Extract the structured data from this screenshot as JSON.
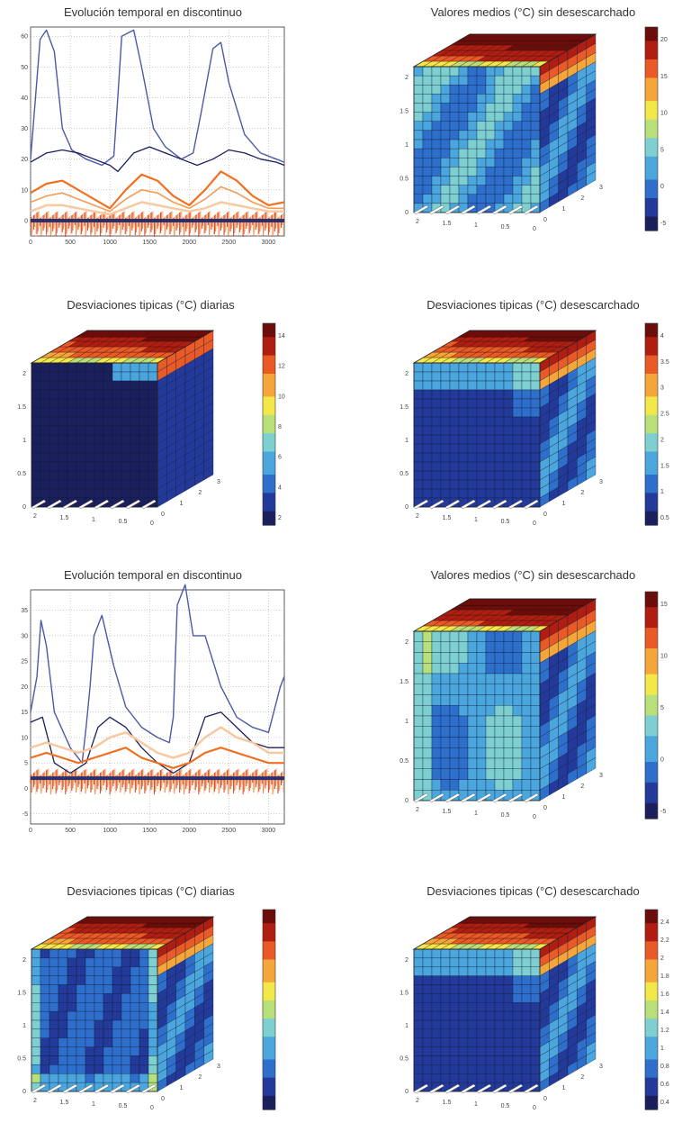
{
  "colors": {
    "line_dark": "#1a1f5e",
    "line_blue": "#4a5aa8",
    "orange_strong": "#f07020",
    "orange_mid": "#f39b55",
    "orange_light": "#f8c8a0",
    "red_dark": "#d03010",
    "navy_band": "#2a2f6e",
    "grid": "#9a9a9a",
    "jet": [
      "#1b1f5c",
      "#233a9a",
      "#2f6fcc",
      "#4aa6dd",
      "#7ed0d0",
      "#b8e07a",
      "#f2e84a",
      "#f5a63a",
      "#ea5a26",
      "#b01e12",
      "#6b0d0a"
    ]
  },
  "chart_data": [
    {
      "id": "line1",
      "type": "line",
      "title": "Evolución temporal en discontinuo",
      "xticks": [
        "0",
        "500",
        "1000",
        "1500",
        "2000",
        "2500",
        "3000"
      ],
      "yticks": [
        "0",
        "10",
        "20",
        "30",
        "40",
        "50",
        "60"
      ],
      "xlim": [
        0,
        3200
      ],
      "ylim": [
        -5,
        63
      ],
      "grid": true,
      "series": [
        {
          "role": "blue_peaks",
          "x": [
            0,
            120,
            200,
            300,
            400,
            520,
            700,
            900,
            1050,
            1100,
            1150,
            1300,
            1400,
            1550,
            1700,
            1900,
            2050,
            2150,
            2300,
            2400,
            2500,
            2700,
            2900,
            3100,
            3200
          ],
          "y": [
            20,
            59,
            62,
            55,
            30,
            23,
            20,
            18,
            21,
            40,
            60,
            62,
            50,
            30,
            24,
            20,
            22,
            35,
            56,
            58,
            45,
            28,
            22,
            20,
            19
          ]
        },
        {
          "role": "dark_line",
          "x": [
            0,
            200,
            400,
            600,
            800,
            1000,
            1100,
            1300,
            1500,
            1700,
            1900,
            2100,
            2300,
            2500,
            2700,
            2900,
            3100,
            3200
          ],
          "y": [
            19,
            22,
            23,
            22,
            20,
            18,
            16,
            22,
            24,
            22,
            20,
            18,
            20,
            23,
            22,
            20,
            19,
            18
          ]
        },
        {
          "role": "orange_strong",
          "x": [
            0,
            200,
            400,
            600,
            800,
            1000,
            1200,
            1400,
            1600,
            1800,
            2000,
            2200,
            2400,
            2600,
            2800,
            3000,
            3200
          ],
          "y": [
            9,
            12,
            13,
            10,
            7,
            4,
            10,
            15,
            13,
            8,
            5,
            10,
            16,
            13,
            8,
            5,
            6
          ]
        },
        {
          "role": "orange_mid",
          "x": [
            0,
            200,
            400,
            600,
            800,
            1000,
            1200,
            1400,
            1600,
            1800,
            2000,
            2200,
            2400,
            2600,
            2800,
            3000,
            3200
          ],
          "y": [
            6,
            8,
            9,
            7,
            5,
            3,
            7,
            10,
            9,
            6,
            4,
            7,
            11,
            9,
            6,
            4,
            4
          ]
        },
        {
          "role": "orange_light",
          "x": [
            0,
            200,
            400,
            600,
            800,
            1000,
            1200,
            1400,
            1600,
            1800,
            2000,
            2200,
            2400,
            2600,
            2800,
            3000,
            3200
          ],
          "y": [
            3,
            5,
            5,
            4,
            3,
            2,
            4,
            6,
            5,
            4,
            3,
            4,
            6,
            5,
            4,
            3,
            3
          ]
        }
      ],
      "band_level": 0
    },
    {
      "id": "cube1",
      "type": "heatmap",
      "title": "Valores medios (°C) sin desescarchado",
      "colorbar_ticks": [
        "20",
        "15",
        "10",
        "5",
        "0",
        "-5"
      ],
      "zticks": [
        "2",
        "1.5",
        "1",
        "0.5",
        "0"
      ],
      "xticks": [
        "2",
        "1.5",
        "1",
        "0.5",
        "0"
      ],
      "yticks": [
        "0",
        "1",
        "2",
        "3"
      ],
      "hot_edge": "top-back",
      "hot_side": "right"
    },
    {
      "id": "cube2",
      "type": "heatmap",
      "title": "Desviaciones tipicas (°C) diarias",
      "colorbar_ticks": [
        "14",
        "12",
        "10",
        "8",
        "6",
        "4",
        "2"
      ],
      "zticks": [
        "2",
        "1.5",
        "1",
        "0.5",
        "0"
      ],
      "xticks": [
        "2",
        "1.5",
        "1",
        "0.5",
        "0"
      ],
      "yticks": [
        "0",
        "1",
        "2",
        "3"
      ],
      "hot_edge": "top-back",
      "hot_side": "right"
    },
    {
      "id": "cube3",
      "type": "heatmap",
      "title": "Desviaciones tipicas (°C) desescarchado",
      "colorbar_ticks": [
        "4",
        "3.5",
        "3",
        "2.5",
        "2",
        "1.5",
        "1",
        "0.5"
      ],
      "zticks": [
        "2",
        "1.5",
        "1",
        "0.5",
        "0"
      ],
      "xticks": [
        "2",
        "1.5",
        "1",
        "0.5",
        "0"
      ],
      "yticks": [
        "0",
        "1",
        "2",
        "3"
      ],
      "hot_edge": "top-back",
      "hot_side": "right"
    },
    {
      "id": "line2",
      "type": "line",
      "title": "Evolución temporal en discontinuo",
      "xticks": [
        "0",
        "500",
        "1000",
        "1500",
        "2000",
        "2500",
        "3000"
      ],
      "yticks": [
        "-5",
        "0",
        "5",
        "10",
        "15",
        "20",
        "25",
        "30",
        "35"
      ],
      "xlim": [
        0,
        3200
      ],
      "ylim": [
        -7,
        39
      ],
      "grid": true,
      "series": [
        {
          "role": "blue_peaks",
          "x": [
            0,
            80,
            130,
            200,
            300,
            500,
            650,
            700,
            750,
            800,
            900,
            1050,
            1200,
            1400,
            1600,
            1750,
            1800,
            1850,
            1950,
            2050,
            2200,
            2400,
            2600,
            2800,
            3000,
            3150,
            3200
          ],
          "y": [
            15,
            22,
            33,
            28,
            15,
            8,
            5,
            12,
            20,
            30,
            34,
            24,
            16,
            12,
            10,
            9,
            14,
            36,
            40,
            30,
            30,
            20,
            14,
            12,
            11,
            20,
            22
          ]
        },
        {
          "role": "dark_line",
          "x": [
            0,
            150,
            300,
            500,
            700,
            850,
            1000,
            1200,
            1400,
            1600,
            1800,
            2000,
            2200,
            2400,
            2600,
            2800,
            3000,
            3200
          ],
          "y": [
            13,
            14,
            5,
            3,
            5,
            12,
            14,
            12,
            8,
            5,
            3,
            5,
            14,
            15,
            12,
            9,
            8,
            8
          ]
        },
        {
          "role": "orange_strong",
          "x": [
            0,
            200,
            400,
            600,
            800,
            1000,
            1200,
            1400,
            1600,
            1800,
            2000,
            2200,
            2400,
            2600,
            2800,
            3000,
            3200
          ],
          "y": [
            6,
            7,
            6,
            5,
            6,
            7,
            8,
            6,
            5,
            4,
            5,
            7,
            8,
            7,
            6,
            5,
            5
          ]
        },
        {
          "role": "orange_light",
          "x": [
            0,
            200,
            400,
            600,
            800,
            1000,
            1200,
            1400,
            1600,
            1800,
            2000,
            2200,
            2400,
            2600,
            2800,
            3000,
            3200
          ],
          "y": [
            8,
            9,
            8,
            7,
            8,
            10,
            11,
            9,
            7,
            6,
            7,
            10,
            12,
            10,
            9,
            7,
            7
          ]
        }
      ],
      "band_level": 2
    },
    {
      "id": "cube4",
      "type": "heatmap",
      "title": "Valores medios (°C) sin desescarchado",
      "colorbar_ticks": [
        "15",
        "10",
        "5",
        "0",
        "-5"
      ],
      "zticks": [
        "2",
        "1.5",
        "1",
        "0.5",
        "0"
      ],
      "xticks": [
        "2",
        "1.5",
        "1",
        "0.5",
        "0"
      ],
      "yticks": [
        "0",
        "1",
        "2",
        "3"
      ],
      "hot_edge": "top-back",
      "hot_side": "right"
    },
    {
      "id": "cube5",
      "type": "heatmap",
      "title": "Desviaciones tipicas (°C) diarias",
      "colorbar_ticks": [],
      "zticks": [
        "2",
        "1.5",
        "1",
        "0.5",
        "0"
      ],
      "xticks": [
        "2",
        "1.5",
        "1",
        "0.5",
        "0"
      ],
      "yticks": [
        "0",
        "1",
        "2",
        "3"
      ],
      "hot_edge": "top-back",
      "hot_side": "right"
    },
    {
      "id": "cube6",
      "type": "heatmap",
      "title": "Desviaciones tipicas (°C) desescarchado",
      "colorbar_ticks": [
        "2.4",
        "2.2",
        "2",
        "1.8",
        "1.6",
        "1.4",
        "1.2",
        "1",
        "0.8",
        "0.6",
        "0.4"
      ],
      "zticks": [
        "2",
        "1.5",
        "1",
        "0.5",
        "0"
      ],
      "xticks": [
        "2",
        "1.5",
        "1",
        "0.5",
        "0"
      ],
      "yticks": [
        "0",
        "1",
        "2",
        "3"
      ],
      "hot_edge": "top-back",
      "hot_side": "right"
    }
  ]
}
